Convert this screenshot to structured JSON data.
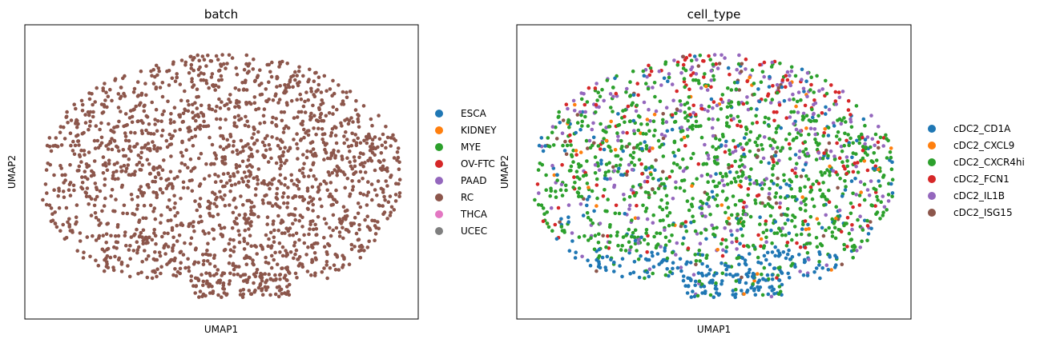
{
  "chart_data": [
    {
      "type": "scatter",
      "title": "batch",
      "xlabel": "UMAP1",
      "ylabel": "UMAP2",
      "grid": false,
      "legend_position": "right",
      "series": [
        {
          "name": "ESCA",
          "color": "#1f77b4",
          "n_points": 0
        },
        {
          "name": "KIDNEY",
          "color": "#ff7f0e",
          "n_points": 0
        },
        {
          "name": "MYE",
          "color": "#2ca02c",
          "n_points": 0
        },
        {
          "name": "OV-FTC",
          "color": "#d62728",
          "n_points": 0
        },
        {
          "name": "PAAD",
          "color": "#9467bd",
          "n_points": 0
        },
        {
          "name": "RC",
          "color": "#8c564b",
          "n_points": 1850
        },
        {
          "name": "THCA",
          "color": "#e377c2",
          "n_points": 0
        },
        {
          "name": "UCEC",
          "color": "#7f7f7f",
          "n_points": 0
        }
      ]
    },
    {
      "type": "scatter",
      "title": "cell_type",
      "xlabel": "UMAP1",
      "ylabel": "UMAP2",
      "grid": false,
      "legend_position": "right",
      "series": [
        {
          "name": "cDC2_CD1A",
          "color": "#1f77b4",
          "weight": 0.12
        },
        {
          "name": "cDC2_CXCL9",
          "color": "#ff7f0e",
          "weight": 0.04
        },
        {
          "name": "cDC2_CXCR4hi",
          "color": "#2ca02c",
          "weight": 0.56
        },
        {
          "name": "cDC2_FCN1",
          "color": "#d62728",
          "weight": 0.1
        },
        {
          "name": "cDC2_IL1B",
          "color": "#9467bd",
          "weight": 0.14
        },
        {
          "name": "cDC2_ISG15",
          "color": "#8c564b",
          "weight": 0.04
        }
      ]
    }
  ]
}
